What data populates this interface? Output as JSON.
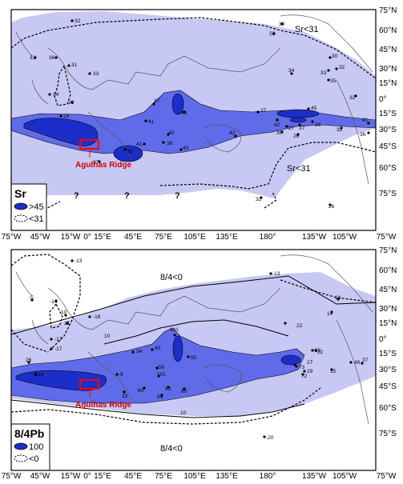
{
  "colors": {
    "light": "#c8c8f5",
    "medium": "#5f6be8",
    "dark": "#1c2ec9",
    "frame": "#000000",
    "highlight": "#ff0000",
    "land": "#ffffff"
  },
  "lat_labels": [
    "75°N",
    "60°N",
    "45°N",
    "30°N",
    "15°N",
    "0°",
    "15°S",
    "30°S",
    "45°S",
    "60°S",
    "75°S"
  ],
  "lon_labels": [
    "75°W",
    "45°W",
    "15°W",
    "0°",
    "15°E",
    "45°E",
    "75°E",
    "105°E",
    "135°E",
    "180°",
    "135°W",
    "105°W",
    "75°W"
  ],
  "map_top": {
    "legend_title": "Sr",
    "legend_high": ">45",
    "legend_low": "<31",
    "region_label_ne": "Sr<31",
    "region_label_se": "Sr<31",
    "unknown_mark": "?",
    "ridge_label": "Agulhas Ridge",
    "points": [
      "32",
      "28",
      "30",
      "33",
      "36",
      "31",
      "33",
      "34",
      "28",
      "29",
      "37",
      "34",
      "30",
      "33",
      "32",
      "35",
      "32",
      "41",
      "46",
      "40",
      "38",
      "40",
      "37",
      "42",
      "45",
      "42",
      "27",
      "37",
      "36",
      "32",
      "41",
      "36",
      "37",
      "32",
      "41",
      "30",
      "26",
      "32",
      "26"
    ]
  },
  "map_bottom": {
    "legend_title": "8/4Pb",
    "legend_high": "100",
    "legend_low": "<0",
    "region_label_n": "8/4<0",
    "region_label_s": "8/4<0",
    "contour_label": "10",
    "ridge_label": "Agulhas Ridge",
    "points": [
      "-13",
      "-14",
      "-5",
      "-18",
      "10",
      "21",
      "-17",
      "-17",
      "34",
      "40",
      "141",
      "50",
      "50",
      "22",
      "14",
      "18",
      "22",
      "35",
      "49",
      "37",
      "-13",
      "26",
      "114",
      "-5",
      "33",
      "80",
      "101",
      "83",
      "94",
      "80",
      "73",
      "72",
      "15",
      "-20",
      "27",
      "29"
    ]
  }
}
